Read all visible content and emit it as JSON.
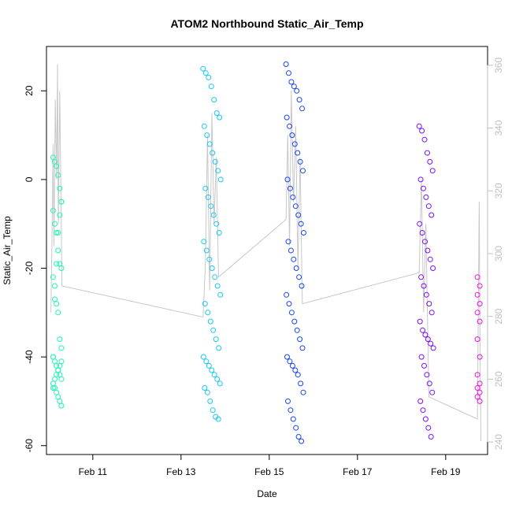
{
  "chart_data": {
    "type": "scatter",
    "title": "ATOM2 Northbound Static_Air_Temp",
    "xlabel": "Date",
    "ylabel": "Static_Air_Temp",
    "x_unit": "days (February)",
    "xlim": [
      9.95,
      19.95
    ],
    "ylim": [
      -62,
      30
    ],
    "x_ticks": [
      {
        "value": 11,
        "label": "Feb 11"
      },
      {
        "value": 13,
        "label": "Feb 13"
      },
      {
        "value": 15,
        "label": "Feb 15"
      },
      {
        "value": 17,
        "label": "Feb 17"
      },
      {
        "value": 19,
        "label": "Feb 19"
      }
    ],
    "y_ticks": [
      20,
      0,
      -20,
      -40,
      -60
    ],
    "y2_lim": [
      236,
      366
    ],
    "y2_ticks": [
      240,
      260,
      280,
      300,
      320,
      340,
      360
    ],
    "y2_color": "#bfbfbf",
    "grid": false,
    "legend": "none",
    "series": [
      {
        "color": "#1EF5B5",
        "x_range": [
          10.1,
          10.32
        ],
        "y_points": [
          5,
          4,
          3,
          1,
          -2,
          -5,
          -7,
          -10,
          -12,
          -16,
          -19,
          -20,
          -22,
          -24,
          -28,
          -30,
          -36,
          -38,
          -40,
          -41,
          -42,
          -43,
          -44,
          -45,
          -46,
          -47,
          -48,
          -49,
          -50,
          -51,
          -47,
          -45,
          -44,
          -43,
          -42,
          -41,
          -40,
          -27,
          -19,
          -12,
          -8,
          -5
        ]
      },
      {
        "color": "#19C8F0",
        "x_range": [
          13.5,
          13.9
        ],
        "y_points": [
          25,
          24,
          23,
          21,
          18,
          15,
          14,
          12,
          10,
          8,
          6,
          4,
          2,
          0,
          -2,
          -4,
          -6,
          -8,
          -10,
          -12,
          -14,
          -16,
          -18,
          -20,
          -22,
          -24,
          -26,
          -28,
          -30,
          -32,
          -34,
          -36,
          -38,
          -40,
          -41,
          -42,
          -43,
          -44,
          -45,
          -46,
          -47,
          -48,
          -50,
          -52,
          -53.5,
          -54
        ]
      },
      {
        "color": "#1846F0",
        "x_range": [
          15.38,
          15.78
        ],
        "y_points": [
          26,
          24,
          22,
          21,
          20,
          18,
          16,
          14,
          12,
          10,
          8,
          6,
          4,
          2,
          0,
          -2,
          -4,
          -6,
          -8,
          -10,
          -12,
          -14,
          -16,
          -18,
          -20,
          -22,
          -24,
          -26,
          -28,
          -30,
          -32,
          -34,
          -36,
          -38,
          -40,
          -41,
          -42,
          -43,
          -44,
          -46,
          -48,
          -50,
          -52,
          -54,
          -56,
          -58,
          -59
        ]
      },
      {
        "color": "#7A10F5",
        "x_range": [
          18.4,
          18.72
        ],
        "y_points": [
          12,
          11,
          9,
          6,
          4,
          2,
          0,
          -2,
          -4,
          -6,
          -8,
          -10,
          -12,
          -14,
          -16,
          -18,
          -20,
          -22,
          -24,
          -26,
          -28,
          -30,
          -32,
          -34,
          -35,
          -36,
          -37,
          -38,
          -40,
          -42,
          -44,
          -46,
          -48,
          -50,
          -52,
          -54,
          -56,
          -58
        ]
      },
      {
        "color": "#F010E6",
        "x_range": [
          19.72,
          19.82
        ],
        "y_points": [
          -22,
          -24,
          -26,
          -28,
          -30,
          -32,
          -36,
          -40,
          -44,
          -46,
          -47,
          -48,
          -49,
          -50
        ]
      }
    ],
    "gray_line": {
      "color": "#c8c8c8",
      "path": [
        [
          10.05,
          -30
        ],
        [
          10.08,
          -10
        ],
        [
          10.1,
          8
        ],
        [
          10.12,
          -15
        ],
        [
          10.15,
          18
        ],
        [
          10.18,
          0
        ],
        [
          10.2,
          26
        ],
        [
          10.22,
          -10
        ],
        [
          10.25,
          20
        ],
        [
          10.28,
          -5
        ],
        [
          10.3,
          -24
        ],
        [
          13.5,
          -31
        ],
        [
          13.55,
          -20
        ],
        [
          13.6,
          10
        ],
        [
          13.65,
          -25
        ],
        [
          13.7,
          15
        ],
        [
          13.75,
          -10
        ],
        [
          13.8,
          5
        ],
        [
          13.85,
          -22
        ],
        [
          15.38,
          -9
        ],
        [
          15.42,
          10
        ],
        [
          15.46,
          -15
        ],
        [
          15.5,
          20
        ],
        [
          15.55,
          -5
        ],
        [
          15.6,
          12
        ],
        [
          15.65,
          -20
        ],
        [
          15.7,
          5
        ],
        [
          15.75,
          -28
        ],
        [
          18.4,
          -21
        ],
        [
          18.45,
          0
        ],
        [
          18.5,
          -30
        ],
        [
          18.55,
          -10
        ],
        [
          18.6,
          -38
        ],
        [
          18.62,
          -49
        ],
        [
          19.72,
          -54
        ],
        [
          19.74,
          -30
        ],
        [
          19.76,
          -5
        ],
        [
          19.78,
          -40
        ],
        [
          19.8,
          -59
        ]
      ]
    }
  }
}
